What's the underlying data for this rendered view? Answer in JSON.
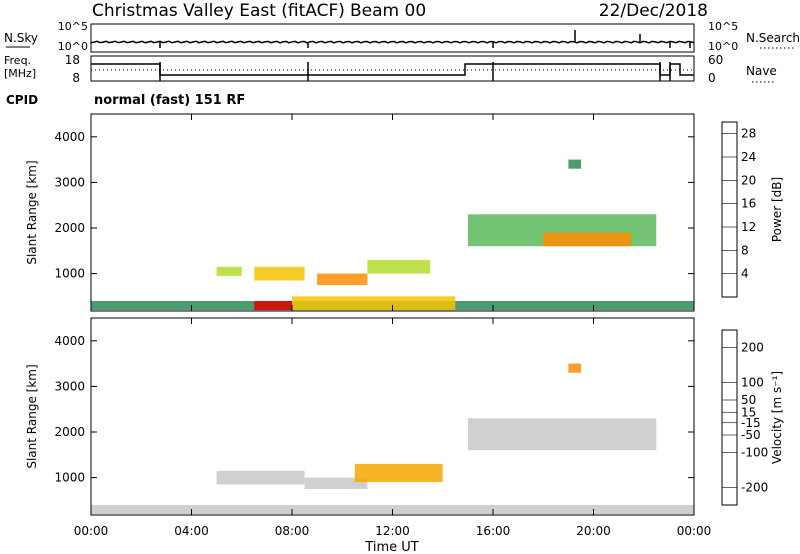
{
  "header": {
    "title": "Christmas Valley East (fitACF)",
    "beam": "Beam 00",
    "date": "22/Dec/2018"
  },
  "status_panels": {
    "nsky": {
      "label": "N.Sky",
      "tick_top": "10^5",
      "tick_bottom": "10^0"
    },
    "nsearch": {
      "label": "N.Search",
      "tick_top": "10^5",
      "tick_bottom": "10^0"
    },
    "freq": {
      "label_line1": "Freq.",
      "label_line2": "[MHz]",
      "tick_top": "18",
      "tick_bottom": "8"
    },
    "nave": {
      "label": "Nave",
      "tick_top": "60",
      "tick_bottom": "0"
    },
    "cpid": {
      "label": "CPID",
      "value": "normal (fast) 151 RF"
    }
  },
  "colors": {
    "power_scale": [
      "#0a14f0",
      "#1e46c8",
      "#2e8b57",
      "#5cb85c",
      "#b4dc2c",
      "#f5c400",
      "#ff8c00",
      "#ff4500",
      "#e00000"
    ],
    "velocity_scale": [
      "#e00000",
      "#ff4500",
      "#ff8c00",
      "#f5a800",
      "#c8c8c8",
      "#c8c8c8",
      "#7ccd3c",
      "#2e8b57",
      "#1e46c8",
      "#0a14f0"
    ]
  },
  "chart_data": [
    {
      "type": "heatmap",
      "title": "",
      "xlabel": "",
      "ylabel": "Slant Range [km]",
      "x_ticks": [
        "00:00",
        "04:00",
        "08:00",
        "12:00",
        "16:00",
        "20:00",
        "00:00"
      ],
      "xlim": [
        0,
        24
      ],
      "y_ticks": [
        "1000",
        "2000",
        "3000",
        "4000"
      ],
      "ylim": [
        180,
        4500
      ],
      "colorbar": {
        "label": "Power [dB]",
        "ticks": [
          "4",
          "8",
          "12",
          "16",
          "20",
          "24",
          "28"
        ],
        "range": [
          0,
          30
        ]
      },
      "cells": [
        {
          "t0": 0.0,
          "t1": 24.0,
          "r0": 200,
          "r1": 400,
          "value": 9
        },
        {
          "t0": 6.5,
          "t1": 8.0,
          "r0": 200,
          "r1": 400,
          "value": 28
        },
        {
          "t0": 8.0,
          "t1": 14.5,
          "r0": 200,
          "r1": 500,
          "value": 18
        },
        {
          "t0": 5.0,
          "t1": 6.0,
          "r0": 950,
          "r1": 1150,
          "value": 15
        },
        {
          "t0": 6.5,
          "t1": 8.5,
          "r0": 850,
          "r1": 1150,
          "value": 19
        },
        {
          "t0": 9.0,
          "t1": 11.0,
          "r0": 750,
          "r1": 1000,
          "value": 20
        },
        {
          "t0": 11.0,
          "t1": 13.5,
          "r0": 1000,
          "r1": 1300,
          "value": 14
        },
        {
          "t0": 15.0,
          "t1": 22.5,
          "r0": 1600,
          "r1": 2300,
          "value": 13
        },
        {
          "t0": 18.0,
          "t1": 21.5,
          "r0": 1600,
          "r1": 1900,
          "value": 21
        },
        {
          "t0": 19.0,
          "t1": 19.5,
          "r0": 3300,
          "r1": 3500,
          "value": 7
        }
      ]
    },
    {
      "type": "heatmap",
      "title": "",
      "xlabel": "Time UT",
      "ylabel": "Slant Range [km]",
      "x_ticks": [
        "00:00",
        "04:00",
        "08:00",
        "12:00",
        "16:00",
        "20:00",
        "00:00"
      ],
      "xlim": [
        0,
        24
      ],
      "y_ticks": [
        "1000",
        "2000",
        "3000",
        "4000"
      ],
      "ylim": [
        180,
        4500
      ],
      "colorbar": {
        "label": "Velocity [m s⁻¹]",
        "ticks": [
          "-200",
          "-100",
          "-50",
          "-15",
          "15",
          "50",
          "100",
          "200"
        ],
        "range": [
          -250,
          250
        ]
      },
      "cells": [
        {
          "t0": 0.0,
          "t1": 24.0,
          "r0": 200,
          "r1": 400,
          "value": -40
        },
        {
          "t0": 5.0,
          "t1": 8.5,
          "r0": 850,
          "r1": 1150,
          "value": 0
        },
        {
          "t0": 8.5,
          "t1": 11.0,
          "r0": 750,
          "r1": 1000,
          "value": 25
        },
        {
          "t0": 10.5,
          "t1": 14.0,
          "r0": 900,
          "r1": 1300,
          "value": -60
        },
        {
          "t0": 15.0,
          "t1": 22.5,
          "r0": 1600,
          "r1": 2300,
          "value": 0
        },
        {
          "t0": 19.0,
          "t1": 19.5,
          "r0": 3300,
          "r1": 3500,
          "value": -120
        }
      ]
    }
  ]
}
